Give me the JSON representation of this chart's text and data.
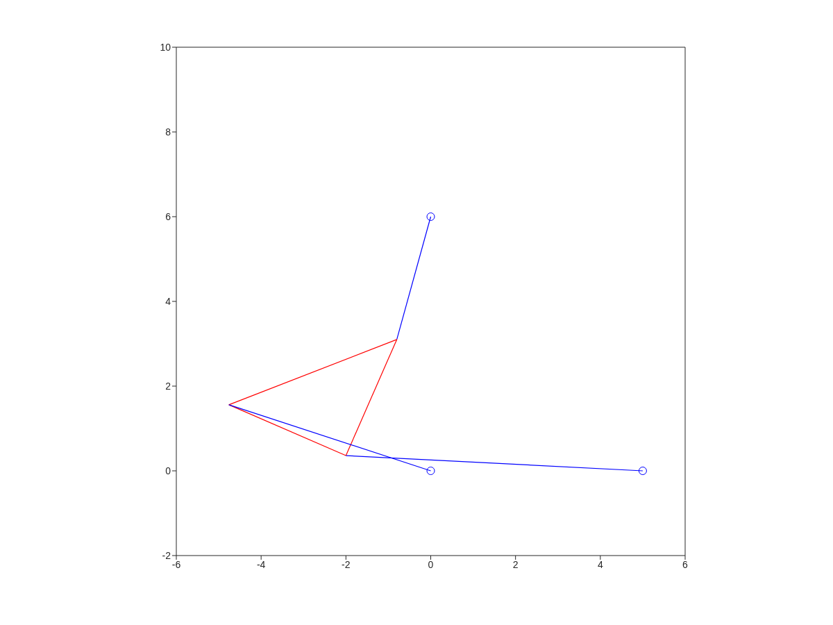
{
  "chart_data": {
    "type": "line",
    "xlim": [
      -6,
      6
    ],
    "ylim": [
      -2,
      10
    ],
    "xticks": [
      -6,
      -4,
      -2,
      0,
      2,
      4,
      6
    ],
    "yticks": [
      -2,
      0,
      2,
      4,
      6,
      8,
      10
    ],
    "series": [
      {
        "color": "#0000ff",
        "marker": "none",
        "x": [
          -0.8,
          0
        ],
        "values": [
          3.1,
          6
        ]
      },
      {
        "color": "#ff0000",
        "marker": "none",
        "x": [
          -4.76,
          -0.8
        ],
        "values": [
          1.56,
          3.1
        ]
      },
      {
        "color": "#ff0000",
        "marker": "none",
        "x": [
          -4.76,
          -2
        ],
        "values": [
          1.56,
          0.36
        ]
      },
      {
        "color": "#ff0000",
        "marker": "none",
        "x": [
          -2,
          -0.8
        ],
        "values": [
          0.36,
          3.1
        ]
      },
      {
        "color": "#0000ff",
        "marker": "none",
        "x": [
          -4.76,
          0
        ],
        "values": [
          1.56,
          0
        ]
      },
      {
        "color": "#0000ff",
        "marker": "none",
        "x": [
          -2,
          5
        ],
        "values": [
          0.36,
          0
        ]
      },
      {
        "type": "scatter",
        "color": "#0000ff",
        "marker": "circle",
        "x": [
          0,
          0,
          5
        ],
        "values": [
          6,
          0,
          0
        ]
      }
    ]
  }
}
